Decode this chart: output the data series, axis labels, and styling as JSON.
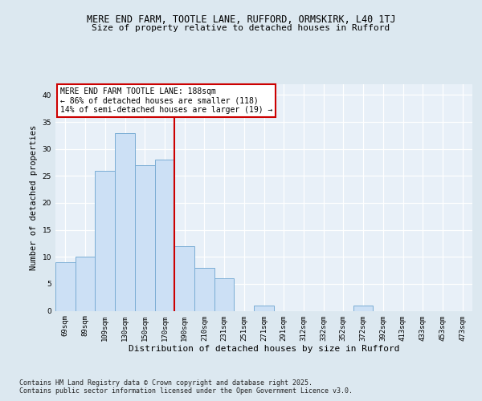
{
  "title1": "MERE END FARM, TOOTLE LANE, RUFFORD, ORMSKIRK, L40 1TJ",
  "title2": "Size of property relative to detached houses in Rufford",
  "xlabel": "Distribution of detached houses by size in Rufford",
  "ylabel": "Number of detached properties",
  "bins": [
    "69sqm",
    "89sqm",
    "109sqm",
    "130sqm",
    "150sqm",
    "170sqm",
    "190sqm",
    "210sqm",
    "231sqm",
    "251sqm",
    "271sqm",
    "291sqm",
    "312sqm",
    "332sqm",
    "352sqm",
    "372sqm",
    "392sqm",
    "413sqm",
    "433sqm",
    "453sqm",
    "473sqm"
  ],
  "values": [
    9,
    10,
    26,
    33,
    27,
    28,
    12,
    8,
    6,
    0,
    1,
    0,
    0,
    0,
    0,
    1,
    0,
    0,
    0,
    0,
    0
  ],
  "bar_color": "#cce0f5",
  "bar_edge_color": "#7aadd4",
  "bar_width": 1.0,
  "ylim": [
    0,
    42
  ],
  "yticks": [
    0,
    5,
    10,
    15,
    20,
    25,
    30,
    35,
    40
  ],
  "vline_color": "#cc0000",
  "annotation_title": "MERE END FARM TOOTLE LANE: 188sqm",
  "annotation_line1": "← 86% of detached houses are smaller (118)",
  "annotation_line2": "14% of semi-detached houses are larger (19) →",
  "annotation_box_color": "#ffffff",
  "annotation_box_edge": "#cc0000",
  "bg_color": "#dce8f0",
  "plot_bg_color": "#e8f0f8",
  "grid_color": "#ffffff",
  "footer1": "Contains HM Land Registry data © Crown copyright and database right 2025.",
  "footer2": "Contains public sector information licensed under the Open Government Licence v3.0."
}
